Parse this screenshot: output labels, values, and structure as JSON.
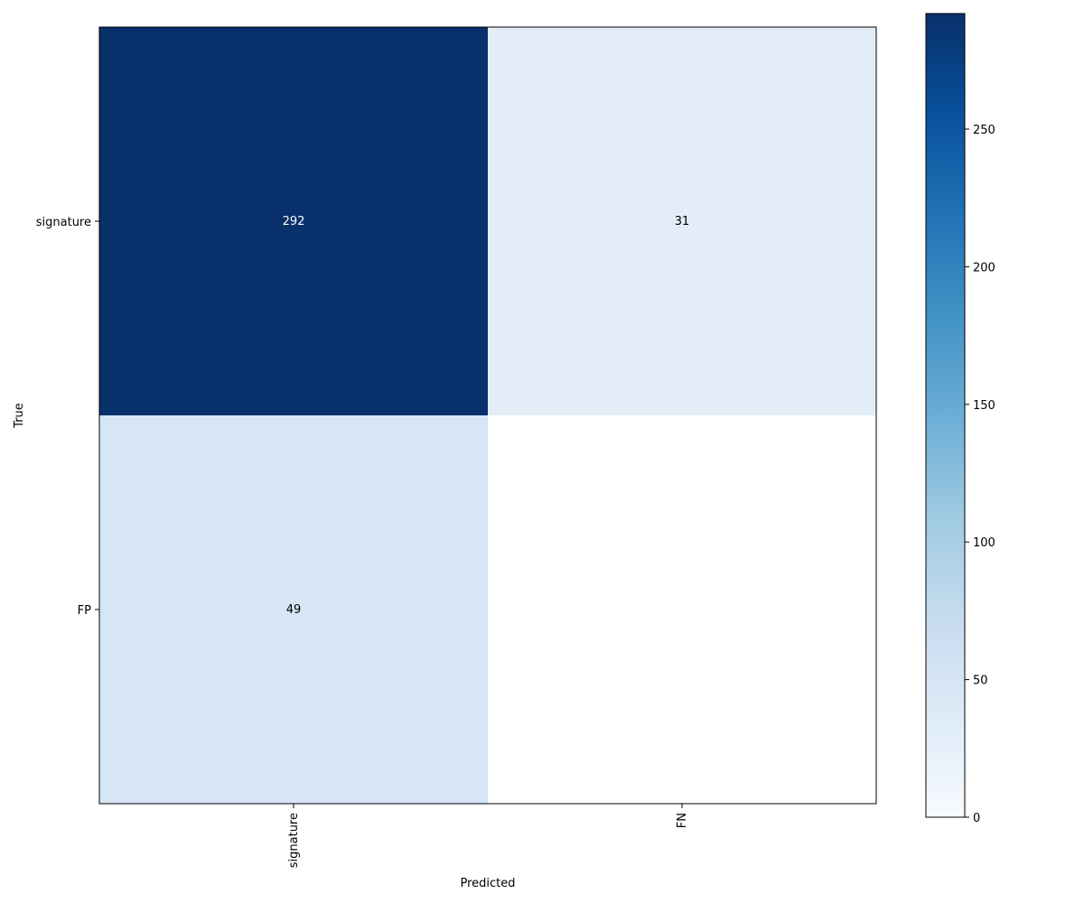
{
  "chart_data": {
    "type": "heatmap",
    "title": "",
    "xlabel": "Predicted",
    "ylabel": "True",
    "x_categories": [
      "signature",
      "FN"
    ],
    "y_categories": [
      "signature",
      "FP"
    ],
    "values": [
      [
        292,
        31
      ],
      [
        49,
        null
      ]
    ],
    "colormap": "Blues",
    "colorbar": {
      "range": [
        0,
        292
      ],
      "ticks": [
        0,
        50,
        100,
        150,
        200,
        250
      ]
    }
  }
}
